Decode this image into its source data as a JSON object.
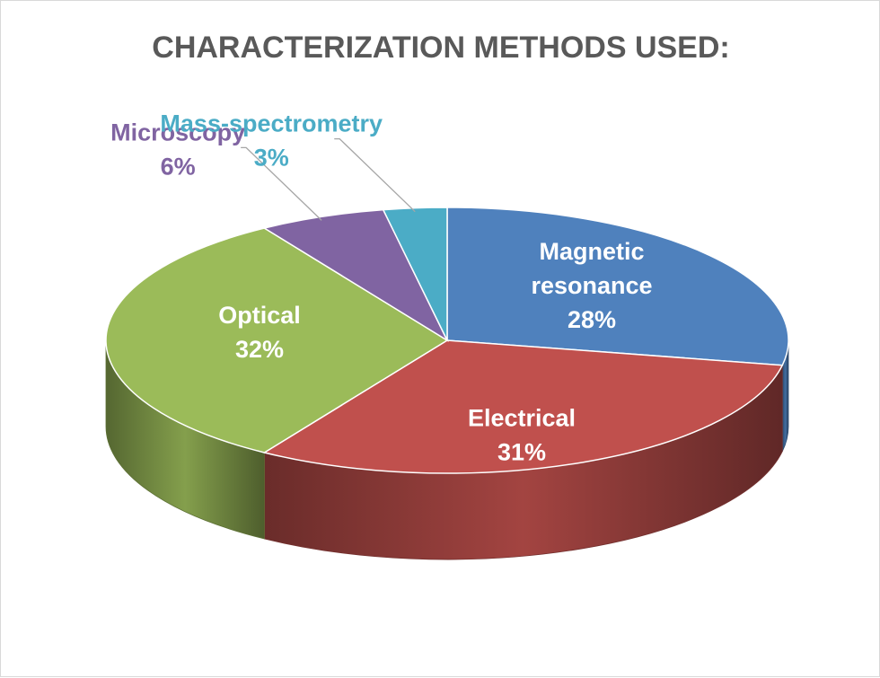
{
  "chart_data": {
    "type": "pie",
    "title": "CHARACTERIZATION METHODS USED:",
    "slices": [
      {
        "name_lines": [
          "Magnetic",
          "resonance"
        ],
        "percent_label": "28%",
        "value": 28,
        "color": "#4F81BD"
      },
      {
        "name_lines": [
          "Electrical"
        ],
        "percent_label": "31%",
        "value": 31,
        "color": "#C0504D"
      },
      {
        "name_lines": [
          "Optical"
        ],
        "percent_label": "32%",
        "value": 32,
        "color": "#9BBB59"
      },
      {
        "name_lines": [
          "Microscopy"
        ],
        "percent_label": "6%",
        "value": 6,
        "color": "#8064A2"
      },
      {
        "name_lines": [
          "Mass-spectrometry"
        ],
        "percent_label": "3%",
        "value": 3,
        "color": "#4BACC6"
      }
    ],
    "legend": "none"
  }
}
